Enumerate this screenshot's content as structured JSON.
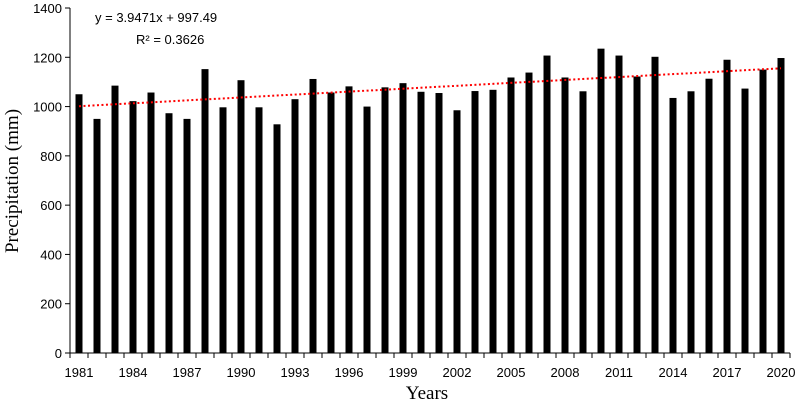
{
  "chart_data": {
    "type": "bar",
    "title": "",
    "xlabel": "Years",
    "ylabel": "Precipitation (mm)",
    "ylim": [
      0,
      1400
    ],
    "yticks": [
      0,
      200,
      400,
      600,
      800,
      1000,
      1200,
      1400
    ],
    "x_tick_labels": [
      "1981",
      "1984",
      "1987",
      "1990",
      "1993",
      "1996",
      "1999",
      "2002",
      "2005",
      "2008",
      "2011",
      "2014",
      "2017",
      "2020"
    ],
    "categories": [
      1981,
      1982,
      1983,
      1984,
      1985,
      1986,
      1987,
      1988,
      1989,
      1990,
      1991,
      1992,
      1993,
      1994,
      1995,
      1996,
      1997,
      1998,
      1999,
      2000,
      2001,
      2002,
      2003,
      2004,
      2005,
      2006,
      2007,
      2008,
      2009,
      2010,
      2011,
      2012,
      2013,
      2014,
      2015,
      2016,
      2017,
      2018,
      2019,
      2020
    ],
    "values": [
      1050,
      950,
      1085,
      1022,
      1057,
      973,
      950,
      1152,
      997,
      1107,
      997,
      928,
      1030,
      1112,
      1057,
      1082,
      1000,
      1078,
      1095,
      1060,
      1055,
      985,
      1063,
      1068,
      1118,
      1138,
      1207,
      1118,
      1062,
      1235,
      1207,
      1122,
      1202,
      1035,
      1062,
      1113,
      1190,
      1073,
      1150,
      1197
    ],
    "bar_color": "#000000",
    "grid": false,
    "legend": "none",
    "trendline": {
      "type": "linear",
      "slope": 3.9471,
      "intercept": 997.49,
      "style": "dotted",
      "color": "#ff0000",
      "equation_text": "y = 3.9471x + 997.49",
      "r2_text": "R² = 0.3626"
    }
  }
}
